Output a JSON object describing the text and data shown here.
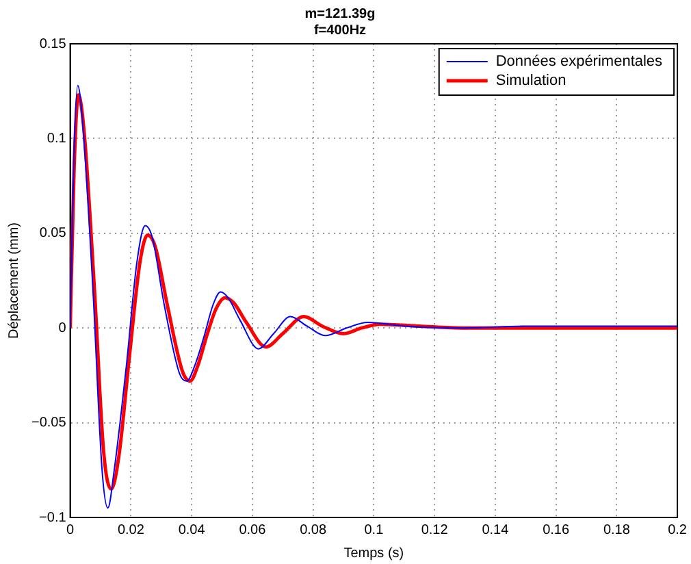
{
  "chart_data": {
    "type": "line",
    "title": "m=121.39g",
    "subtitle": "f=400Hz",
    "xlabel": "Temps (s)",
    "ylabel": "Déplacement (mm)",
    "xlim": [
      0,
      0.2
    ],
    "xticks": [
      0,
      0.02,
      0.04,
      0.06,
      0.08,
      0.1,
      0.12,
      0.14,
      0.16,
      0.18,
      0.2
    ],
    "ylim": [
      -0.1,
      0.15
    ],
    "yticks": [
      {
        "value": -0.1,
        "label": "−0.1"
      },
      {
        "value": -0.05,
        "label": "−0.05"
      },
      0,
      0.05,
      0.1,
      0.15
    ],
    "grid": true,
    "legend": "top right",
    "marker": "none",
    "line_style": "solid",
    "series": [
      {
        "name": "Données expérimentales",
        "color": "#0000ff",
        "x": [
          0,
          0.0012,
          0.0025,
          0.004,
          0.0075,
          0.0105,
          0.0124,
          0.0145,
          0.0185,
          0.022,
          0.0247,
          0.027,
          0.031,
          0.036,
          0.0384,
          0.041,
          0.044,
          0.047,
          0.0495,
          0.052,
          0.056,
          0.062,
          0.067,
          0.0725,
          0.078,
          0.084,
          0.091,
          0.098,
          0.11,
          0.13,
          0.15,
          0.17,
          0.2
        ],
        "values": [
          0,
          0.09,
          0.128,
          0.11,
          0.02,
          -0.075,
          -0.095,
          -0.075,
          -0.02,
          0.035,
          0.054,
          0.048,
          0.012,
          -0.024,
          -0.028,
          -0.02,
          -0.005,
          0.012,
          0.019,
          0.016,
          0.004,
          -0.011,
          -0.003,
          0.006,
          0.001,
          -0.004,
          0,
          0.003,
          0.001,
          0,
          0.001,
          0.001,
          0.001
        ]
      },
      {
        "name": "Simulation",
        "color": "#ff0000",
        "x": [
          0,
          0.0013,
          0.0027,
          0.0045,
          0.008,
          0.011,
          0.0135,
          0.016,
          0.0195,
          0.023,
          0.0255,
          0.028,
          0.032,
          0.037,
          0.0395,
          0.042,
          0.045,
          0.048,
          0.051,
          0.054,
          0.058,
          0.0645,
          0.07,
          0.077,
          0.083,
          0.09,
          0.096,
          0.102,
          0.115,
          0.13,
          0.15,
          0.17,
          0.2
        ],
        "values": [
          0,
          0.085,
          0.123,
          0.105,
          0.02,
          -0.065,
          -0.085,
          -0.068,
          -0.015,
          0.035,
          0.049,
          0.043,
          0.012,
          -0.023,
          -0.028,
          -0.02,
          -0.004,
          0.01,
          0.016,
          0.013,
          0.003,
          -0.01,
          -0.003,
          0.006,
          0.001,
          -0.003,
          0,
          0.002,
          0.001,
          0,
          0,
          0,
          0
        ]
      }
    ]
  }
}
